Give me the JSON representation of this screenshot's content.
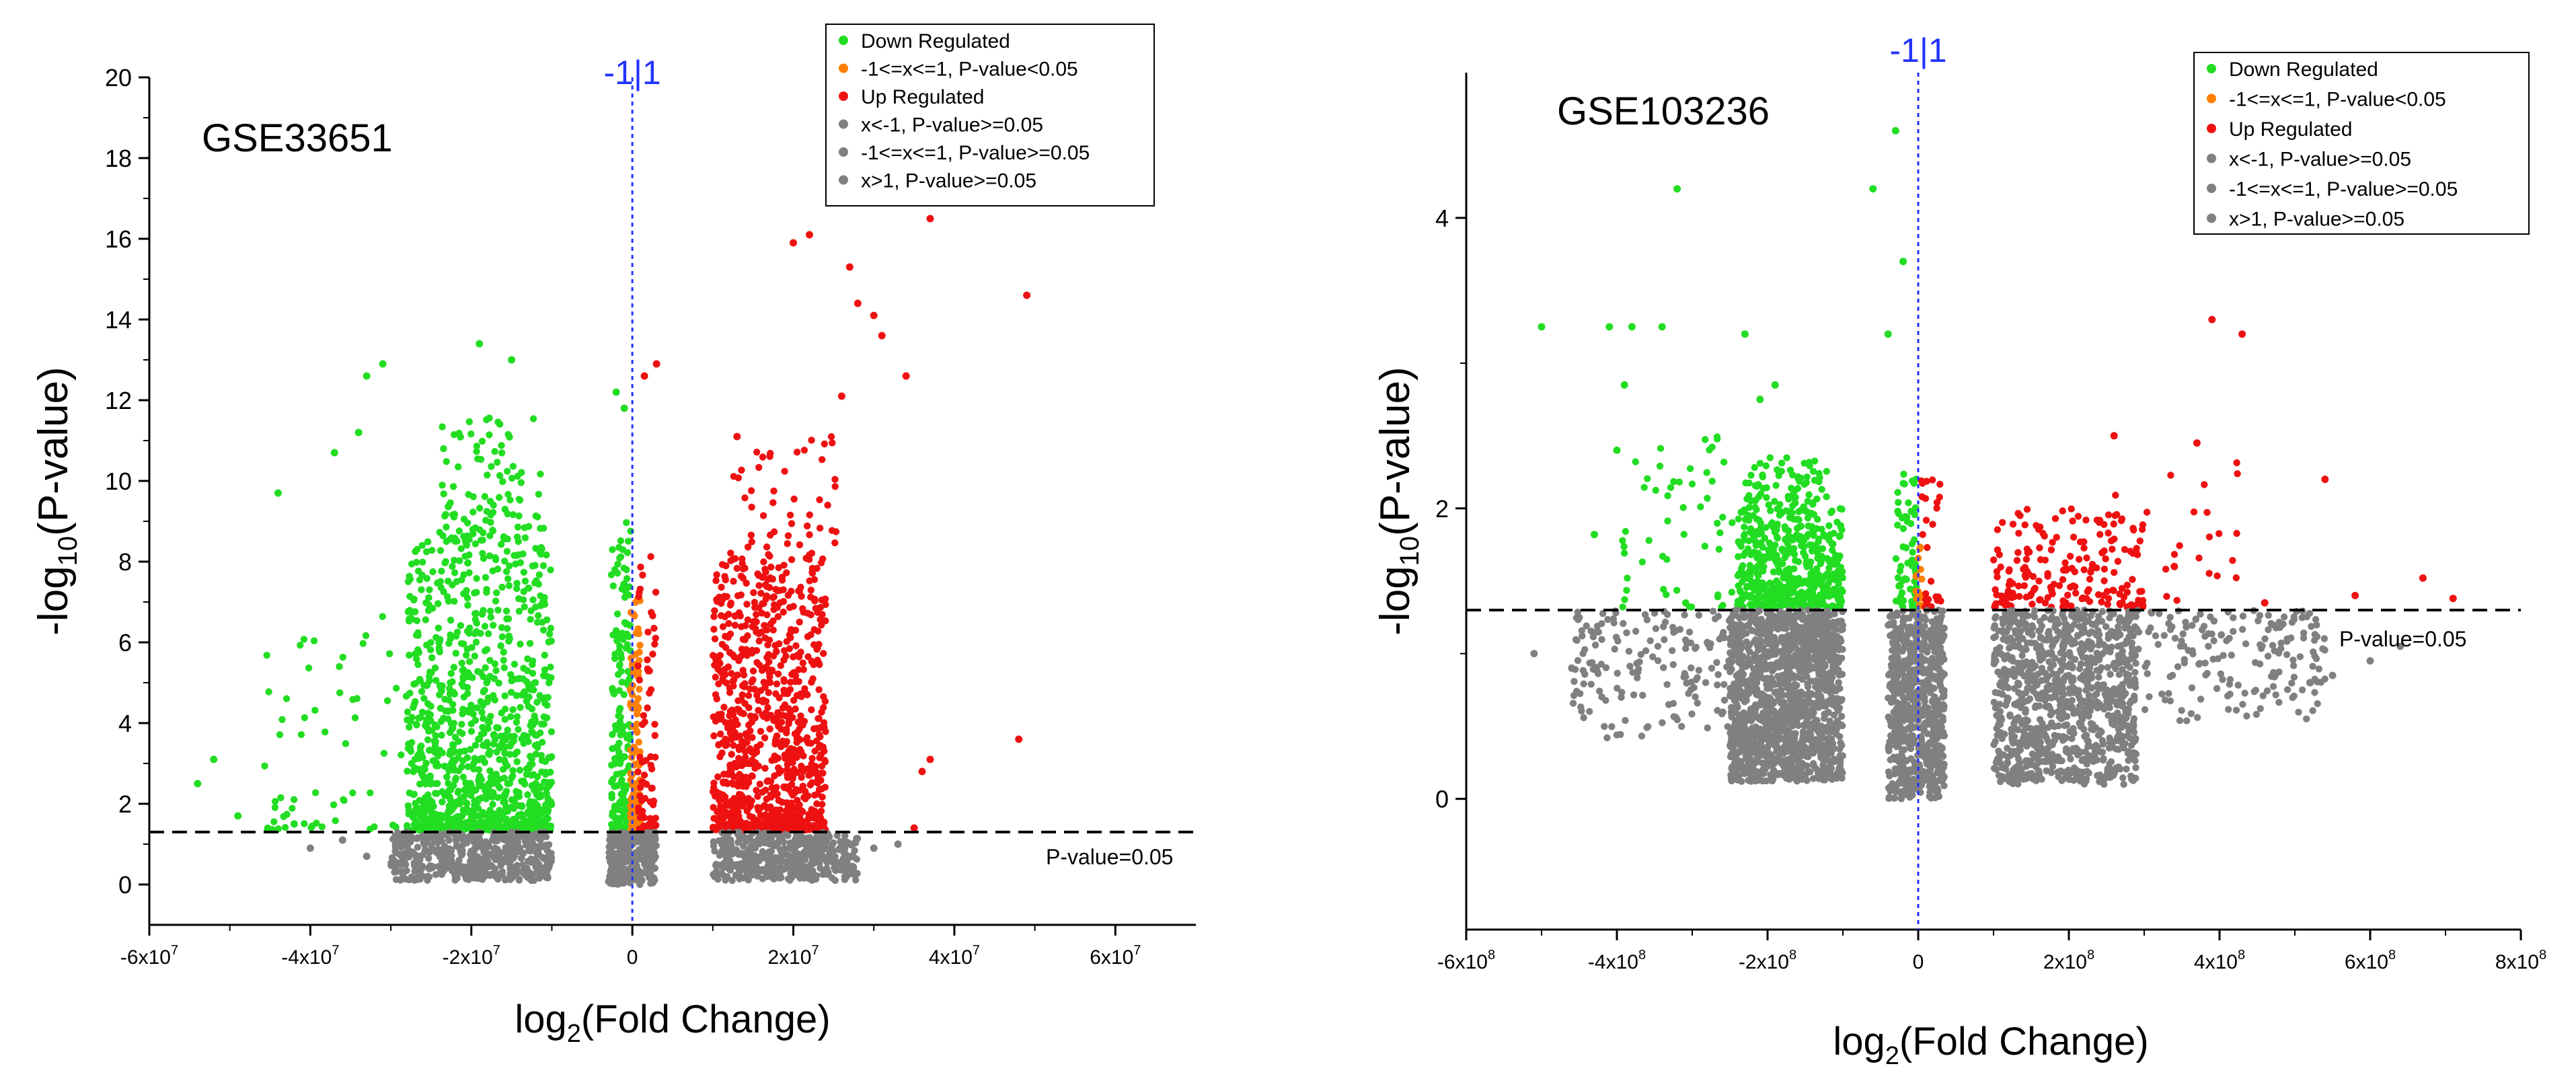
{
  "chart_data": [
    {
      "type": "scatter",
      "dataset_label": "GSE33651",
      "xlabel_main": "log",
      "xlabel_sub": "2",
      "xlabel_rest": "(Fold Change)",
      "ylabel_prefix": "-log",
      "ylabel_sub": "10",
      "ylabel_rest": "(P-value)",
      "xlim": [
        -60000000,
        70000000
      ],
      "ylim": [
        -1,
        20
      ],
      "x_ticks": [
        {
          "value": -60000000,
          "mant": "-6x10",
          "exp": "7"
        },
        {
          "value": -40000000,
          "mant": "-4x10",
          "exp": "7"
        },
        {
          "value": -20000000,
          "mant": "-2x10",
          "exp": "7"
        },
        {
          "value": 0,
          "mant": "0",
          "exp": ""
        },
        {
          "value": 20000000,
          "mant": "2x10",
          "exp": "7"
        },
        {
          "value": 40000000,
          "mant": "4x10",
          "exp": "7"
        },
        {
          "value": 60000000,
          "mant": "6x10",
          "exp": "7"
        }
      ],
      "y_ticks": [
        0,
        2,
        4,
        6,
        8,
        10,
        12,
        14,
        16,
        18,
        20
      ],
      "vline_x": 0,
      "vline_label": "-1|1",
      "threshold_y": 1.3,
      "threshold_label": "P-value=0.05",
      "legend": [
        {
          "label": "Down Regulated",
          "color": "#22dd22"
        },
        {
          "label": "-1<=x<=1, P-value<0.05",
          "color": "#ff7f00"
        },
        {
          "label": "Up Regulated",
          "color": "#ee1111"
        },
        {
          "label": "x<-1, P-value>=0.05",
          "color": "#808080"
        },
        {
          "label": "-1<=x<=1, P-value>=0.05",
          "color": "#808080"
        },
        {
          "label": "x>1, P-value>=0.05",
          "color": "#808080"
        }
      ],
      "clusters": [
        {
          "name": "down-main",
          "color": "#22dd22",
          "n": 1100,
          "xr": [
            -28000000,
            -10000000
          ],
          "yr": [
            1.35,
            8.5
          ],
          "pow": 2.2,
          "seed": 11
        },
        {
          "name": "down-top",
          "color": "#22dd22",
          "n": 110,
          "xr": [
            -24000000,
            -11000000
          ],
          "yr": [
            8.5,
            11.7
          ],
          "pow": 1.6,
          "seed": 12
        },
        {
          "name": "down-spread",
          "color": "#22dd22",
          "n": 60,
          "xr": [
            -46000000,
            -28000000
          ],
          "yr": [
            1.35,
            7.0
          ],
          "pow": 2.0,
          "seed": 13
        },
        {
          "name": "down-near-zero",
          "color": "#22dd22",
          "n": 170,
          "xr": [
            -2600000,
            -200000
          ],
          "yr": [
            1.35,
            9.0
          ],
          "pow": 1.8,
          "seed": 14
        },
        {
          "name": "nc-sig",
          "color": "#ff7f00",
          "n": 120,
          "xr": [
            -300000,
            1000000
          ],
          "yr": [
            1.35,
            7.2
          ],
          "pow": 1.6,
          "seed": 15
        },
        {
          "name": "up-near-zero",
          "color": "#ee1111",
          "n": 70,
          "xr": [
            500000,
            3000000
          ],
          "yr": [
            1.35,
            8.2
          ],
          "pow": 2.0,
          "seed": 16
        },
        {
          "name": "up-main",
          "color": "#ee1111",
          "n": 1000,
          "xr": [
            10000000,
            24000000
          ],
          "yr": [
            1.35,
            8.3
          ],
          "pow": 2.3,
          "seed": 17
        },
        {
          "name": "up-top",
          "color": "#ee1111",
          "n": 45,
          "xr": [
            12000000,
            26000000
          ],
          "yr": [
            8.3,
            11.1
          ],
          "pow": 1.3,
          "seed": 18
        },
        {
          "name": "gray-left",
          "color": "#808080",
          "n": 500,
          "xr": [
            -30000000,
            -10000000
          ],
          "yr": [
            0.1,
            1.3
          ],
          "pow": 1.0,
          "seed": 19
        },
        {
          "name": "gray-mid",
          "color": "#808080",
          "n": 260,
          "xr": [
            -3000000,
            3000000
          ],
          "yr": [
            0.0,
            1.3
          ],
          "pow": 1.0,
          "seed": 20
        },
        {
          "name": "gray-right",
          "color": "#808080",
          "n": 450,
          "xr": [
            10000000,
            28000000
          ],
          "yr": [
            0.1,
            1.3
          ],
          "pow": 1.0,
          "seed": 21
        }
      ],
      "outliers": [
        {
          "x": -54000000,
          "y": 2.5,
          "c": "#22dd22"
        },
        {
          "x": -52000000,
          "y": 3.1,
          "c": "#22dd22"
        },
        {
          "x": -49000000,
          "y": 1.7,
          "c": "#22dd22"
        },
        {
          "x": -44000000,
          "y": 9.7,
          "c": "#22dd22"
        },
        {
          "x": -42000000,
          "y": 1.5,
          "c": "#22dd22"
        },
        {
          "x": -37000000,
          "y": 10.7,
          "c": "#22dd22"
        },
        {
          "x": -34000000,
          "y": 11.2,
          "c": "#22dd22"
        },
        {
          "x": -33000000,
          "y": 12.6,
          "c": "#22dd22"
        },
        {
          "x": -31000000,
          "y": 12.9,
          "c": "#22dd22"
        },
        {
          "x": -19000000,
          "y": 13.4,
          "c": "#22dd22"
        },
        {
          "x": -15000000,
          "y": 13.0,
          "c": "#22dd22"
        },
        {
          "x": -2000000,
          "y": 12.2,
          "c": "#22dd22"
        },
        {
          "x": -1000000,
          "y": 11.8,
          "c": "#22dd22"
        },
        {
          "x": 1500000,
          "y": 12.6,
          "c": "#ee1111"
        },
        {
          "x": 3000000,
          "y": 12.9,
          "c": "#ee1111"
        },
        {
          "x": 13000000,
          "y": 11.1,
          "c": "#ee1111"
        },
        {
          "x": 20000000,
          "y": 15.9,
          "c": "#ee1111"
        },
        {
          "x": 22000000,
          "y": 16.1,
          "c": "#ee1111"
        },
        {
          "x": 26000000,
          "y": 12.1,
          "c": "#ee1111"
        },
        {
          "x": 27000000,
          "y": 15.3,
          "c": "#ee1111"
        },
        {
          "x": 28000000,
          "y": 14.4,
          "c": "#ee1111"
        },
        {
          "x": 30000000,
          "y": 14.1,
          "c": "#ee1111"
        },
        {
          "x": 31000000,
          "y": 13.6,
          "c": "#ee1111"
        },
        {
          "x": 34000000,
          "y": 12.6,
          "c": "#ee1111"
        },
        {
          "x": 36000000,
          "y": 2.8,
          "c": "#ee1111"
        },
        {
          "x": 37000000,
          "y": 3.1,
          "c": "#ee1111"
        },
        {
          "x": 37000000,
          "y": 16.5,
          "c": "#ee1111"
        },
        {
          "x": 49000000,
          "y": 14.6,
          "c": "#ee1111"
        },
        {
          "x": 48000000,
          "y": 3.6,
          "c": "#ee1111"
        },
        {
          "x": 35000000,
          "y": 1.4,
          "c": "#ee1111"
        },
        {
          "x": -40000000,
          "y": 0.9,
          "c": "#808080"
        },
        {
          "x": -36000000,
          "y": 1.1,
          "c": "#808080"
        },
        {
          "x": -33000000,
          "y": 0.7,
          "c": "#808080"
        },
        {
          "x": 30000000,
          "y": 0.9,
          "c": "#808080"
        },
        {
          "x": 33000000,
          "y": 1.0,
          "c": "#808080"
        }
      ]
    },
    {
      "type": "scatter",
      "dataset_label": "GSE103236",
      "xlabel_main": "log",
      "xlabel_sub": "2",
      "xlabel_rest": "(Fold Change)",
      "ylabel_prefix": "-log",
      "ylabel_sub": "10",
      "ylabel_rest": "(P-value)",
      "xlim": [
        -600000000,
        800000000
      ],
      "ylim": [
        -0.9,
        5.0
      ],
      "x_ticks": [
        {
          "value": -600000000,
          "mant": "-6x10",
          "exp": "8"
        },
        {
          "value": -400000000,
          "mant": "-4x10",
          "exp": "8"
        },
        {
          "value": -200000000,
          "mant": "-2x10",
          "exp": "8"
        },
        {
          "value": 0,
          "mant": "0",
          "exp": ""
        },
        {
          "value": 200000000,
          "mant": "2x10",
          "exp": "8"
        },
        {
          "value": 400000000,
          "mant": "4x10",
          "exp": "8"
        },
        {
          "value": 600000000,
          "mant": "6x10",
          "exp": "8"
        },
        {
          "value": 800000000,
          "mant": "8x10",
          "exp": "8"
        }
      ],
      "y_ticks": [
        0,
        2,
        4
      ],
      "vline_x": 0,
      "vline_label": "-1|1",
      "threshold_y": 1.3,
      "threshold_label": "P-value=0.05",
      "legend": [
        {
          "label": "Down Regulated",
          "color": "#22dd22"
        },
        {
          "label": "-1<=x<=1, P-value<0.05",
          "color": "#ff7f00"
        },
        {
          "label": "Up Regulated",
          "color": "#ee1111"
        },
        {
          "label": "x<-1, P-value>=0.05",
          "color": "#808080"
        },
        {
          "label": "-1<=x<=1, P-value>=0.05",
          "color": "#808080"
        },
        {
          "label": "x>1, P-value>=0.05",
          "color": "#808080"
        }
      ],
      "clusters": [
        {
          "name": "down-main",
          "color": "#22dd22",
          "n": 520,
          "xr": [
            -240000000,
            -100000000
          ],
          "yr": [
            1.32,
            2.0
          ],
          "pow": 1.7,
          "seed": 31
        },
        {
          "name": "down-top",
          "color": "#22dd22",
          "n": 70,
          "xr": [
            -230000000,
            -120000000
          ],
          "yr": [
            2.0,
            2.35
          ],
          "pow": 1.2,
          "seed": 32
        },
        {
          "name": "down-spread",
          "color": "#22dd22",
          "n": 55,
          "xr": [
            -400000000,
            -240000000
          ],
          "yr": [
            1.32,
            2.5
          ],
          "pow": 1.8,
          "seed": 33
        },
        {
          "name": "down-near-zero",
          "color": "#22dd22",
          "n": 60,
          "xr": [
            -30000000,
            -2000000
          ],
          "yr": [
            1.32,
            2.3
          ],
          "pow": 1.6,
          "seed": 34
        },
        {
          "name": "nc-sig",
          "color": "#ff7f00",
          "n": 18,
          "xr": [
            -3000000,
            5000000
          ],
          "yr": [
            1.32,
            1.8
          ],
          "pow": 1.2,
          "seed": 35
        },
        {
          "name": "up-near-zero",
          "color": "#ee1111",
          "n": 25,
          "xr": [
            3000000,
            30000000
          ],
          "yr": [
            1.32,
            2.25
          ],
          "pow": 1.6,
          "seed": 36
        },
        {
          "name": "up-main",
          "color": "#ee1111",
          "n": 190,
          "xr": [
            100000000,
            300000000
          ],
          "yr": [
            1.32,
            2.0
          ],
          "pow": 1.8,
          "seed": 37
        },
        {
          "name": "up-spread",
          "color": "#ee1111",
          "n": 25,
          "xr": [
            250000000,
            430000000
          ],
          "yr": [
            1.32,
            2.4
          ],
          "pow": 1.5,
          "seed": 38
        },
        {
          "name": "gray-left",
          "color": "#808080",
          "n": 1400,
          "xr": [
            -250000000,
            -100000000
          ],
          "yr": [
            0.12,
            1.3
          ],
          "pow": 1.0,
          "seed": 39
        },
        {
          "name": "gray-left-spread",
          "color": "#808080",
          "n": 160,
          "xr": [
            -460000000,
            -250000000
          ],
          "yr": [
            0.4,
            1.3
          ],
          "pow": 0.7,
          "seed": 40
        },
        {
          "name": "gray-mid",
          "color": "#808080",
          "n": 700,
          "xr": [
            -40000000,
            35000000
          ],
          "yr": [
            0.0,
            1.3
          ],
          "pow": 1.0,
          "seed": 41
        },
        {
          "name": "gray-right",
          "color": "#808080",
          "n": 1000,
          "xr": [
            100000000,
            290000000
          ],
          "yr": [
            0.1,
            1.3
          ],
          "pow": 1.0,
          "seed": 42
        },
        {
          "name": "gray-right-spread",
          "color": "#808080",
          "n": 180,
          "xr": [
            290000000,
            540000000
          ],
          "yr": [
            0.5,
            1.3
          ],
          "pow": 0.7,
          "seed": 43
        }
      ],
      "outliers": [
        {
          "x": -500000000,
          "y": 3.25,
          "c": "#22dd22"
        },
        {
          "x": -410000000,
          "y": 3.25,
          "c": "#22dd22"
        },
        {
          "x": -400000000,
          "y": 2.4,
          "c": "#22dd22"
        },
        {
          "x": -380000000,
          "y": 3.25,
          "c": "#22dd22"
        },
        {
          "x": -390000000,
          "y": 2.85,
          "c": "#22dd22"
        },
        {
          "x": -340000000,
          "y": 3.25,
          "c": "#22dd22"
        },
        {
          "x": -320000000,
          "y": 4.2,
          "c": "#22dd22"
        },
        {
          "x": -230000000,
          "y": 3.2,
          "c": "#22dd22"
        },
        {
          "x": -210000000,
          "y": 2.75,
          "c": "#22dd22"
        },
        {
          "x": -190000000,
          "y": 2.85,
          "c": "#22dd22"
        },
        {
          "x": -430000000,
          "y": 1.82,
          "c": "#22dd22"
        },
        {
          "x": -60000000,
          "y": 4.2,
          "c": "#22dd22"
        },
        {
          "x": -30000000,
          "y": 4.6,
          "c": "#22dd22"
        },
        {
          "x": -40000000,
          "y": 3.2,
          "c": "#22dd22"
        },
        {
          "x": -20000000,
          "y": 3.7,
          "c": "#22dd22"
        },
        {
          "x": 390000000,
          "y": 3.3,
          "c": "#ee1111"
        },
        {
          "x": 430000000,
          "y": 3.2,
          "c": "#ee1111"
        },
        {
          "x": 260000000,
          "y": 2.5,
          "c": "#ee1111"
        },
        {
          "x": 370000000,
          "y": 2.45,
          "c": "#ee1111"
        },
        {
          "x": 540000000,
          "y": 2.2,
          "c": "#ee1111"
        },
        {
          "x": 460000000,
          "y": 1.35,
          "c": "#ee1111"
        },
        {
          "x": 580000000,
          "y": 1.4,
          "c": "#ee1111"
        },
        {
          "x": 670000000,
          "y": 1.52,
          "c": "#ee1111"
        },
        {
          "x": 710000000,
          "y": 1.38,
          "c": "#ee1111"
        },
        {
          "x": 340000000,
          "y": 1.6,
          "c": "#ee1111"
        },
        {
          "x": -510000000,
          "y": 1.0,
          "c": "#808080"
        },
        {
          "x": -460000000,
          "y": 0.9,
          "c": "#808080"
        },
        {
          "x": 550000000,
          "y": 0.85,
          "c": "#808080"
        },
        {
          "x": 520000000,
          "y": 0.8,
          "c": "#808080"
        },
        {
          "x": 600000000,
          "y": 0.95,
          "c": "#808080"
        },
        {
          "x": 640000000,
          "y": 1.05,
          "c": "#808080"
        },
        {
          "x": 490000000,
          "y": 1.1,
          "c": "#808080"
        }
      ]
    }
  ]
}
